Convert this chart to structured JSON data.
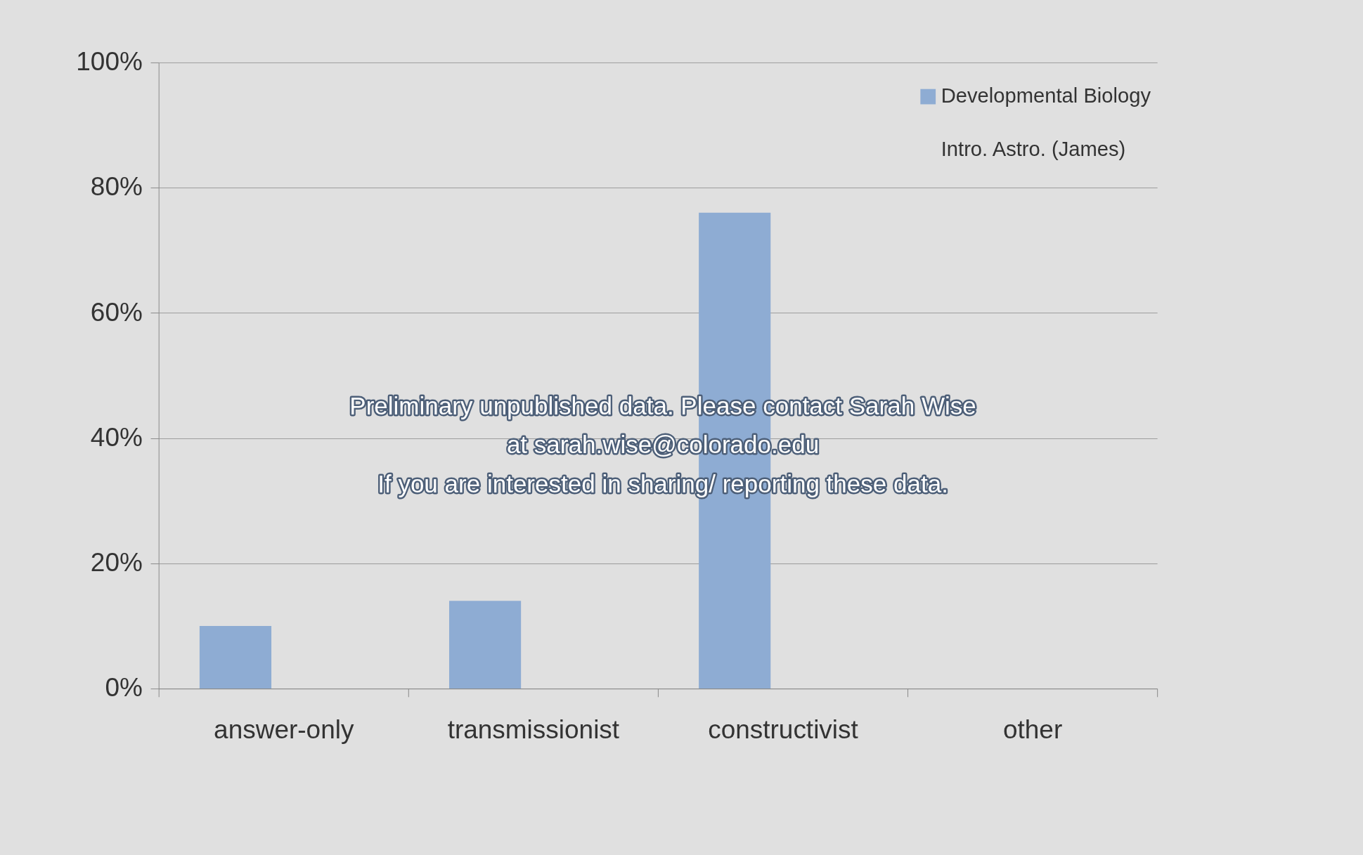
{
  "chart_data": {
    "type": "bar",
    "categories": [
      "answer-only",
      "transmissionist",
      "constructivist",
      "other"
    ],
    "series": [
      {
        "name": "Developmental Biology",
        "color": "#8eacd3",
        "values": [
          10,
          14,
          76,
          0
        ]
      },
      {
        "name": "Intro. Astro. (James)",
        "values": [
          null,
          null,
          null,
          null
        ]
      }
    ],
    "ylim": [
      0,
      100
    ],
    "yticks": [
      {
        "value": 0,
        "label": "0%"
      },
      {
        "value": 20,
        "label": "20%"
      },
      {
        "value": 40,
        "label": "40%"
      },
      {
        "value": 60,
        "label": "60%"
      },
      {
        "value": 80,
        "label": "80%"
      },
      {
        "value": 100,
        "label": "100%"
      }
    ],
    "grid": "y",
    "legend": "top right",
    "annotations": [
      "Preliminary unpublished data. Please contact Sarah Wise\nat sarah.wise@colorado.edu\nIf you are interested in sharing/ reporting these data."
    ]
  }
}
